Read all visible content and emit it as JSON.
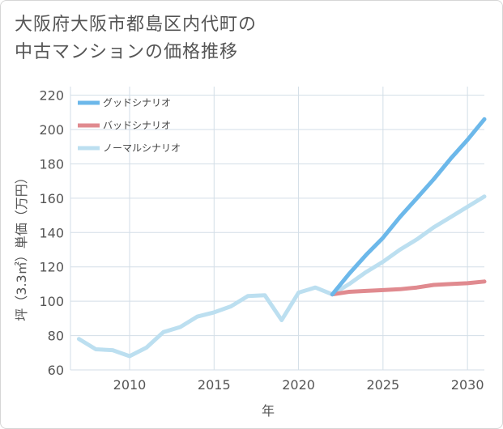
{
  "chart_data": {
    "type": "line",
    "title": [
      "大阪府大阪市都島区内代町の",
      "中古マンションの価格推移"
    ],
    "xlabel": "年",
    "ylabel": "坪（3.3㎡）単価（万円）",
    "xlim": [
      2006.5,
      2031
    ],
    "ylim": [
      60,
      225
    ],
    "xticks": [
      2010,
      2015,
      2020,
      2025,
      2030
    ],
    "yticks": [
      60,
      80,
      100,
      120,
      140,
      160,
      180,
      200,
      220
    ],
    "grid": true,
    "legend_position": "top-left",
    "series": [
      {
        "name": "グッドシナリオ",
        "color": "#6cb8ea",
        "x": [
          2022,
          2023,
          2024,
          2025,
          2026,
          2027,
          2028,
          2029,
          2030,
          2031
        ],
        "y": [
          104,
          116,
          127,
          137,
          149,
          160,
          171,
          183,
          194,
          206
        ]
      },
      {
        "name": "バッドシナリオ",
        "color": "#e08a8f",
        "x": [
          2022,
          2023,
          2024,
          2025,
          2026,
          2027,
          2028,
          2029,
          2030,
          2031
        ],
        "y": [
          104,
          105.5,
          106,
          106.5,
          107,
          108,
          109.5,
          110,
          110.5,
          111.5
        ]
      },
      {
        "name": "ノーマルシナリオ",
        "color": "#bcdff0",
        "x": [
          2007,
          2008,
          2009,
          2010,
          2011,
          2012,
          2013,
          2014,
          2015,
          2016,
          2017,
          2018,
          2019,
          2020,
          2021,
          2022,
          2023,
          2024,
          2025,
          2026,
          2027,
          2028,
          2029,
          2030,
          2031
        ],
        "y": [
          78,
          72,
          71.5,
          68,
          73,
          82,
          85,
          91,
          93.5,
          97,
          103,
          103.5,
          89,
          105,
          108,
          104,
          110,
          117,
          123,
          130,
          136,
          143,
          149,
          155,
          161
        ]
      }
    ]
  }
}
